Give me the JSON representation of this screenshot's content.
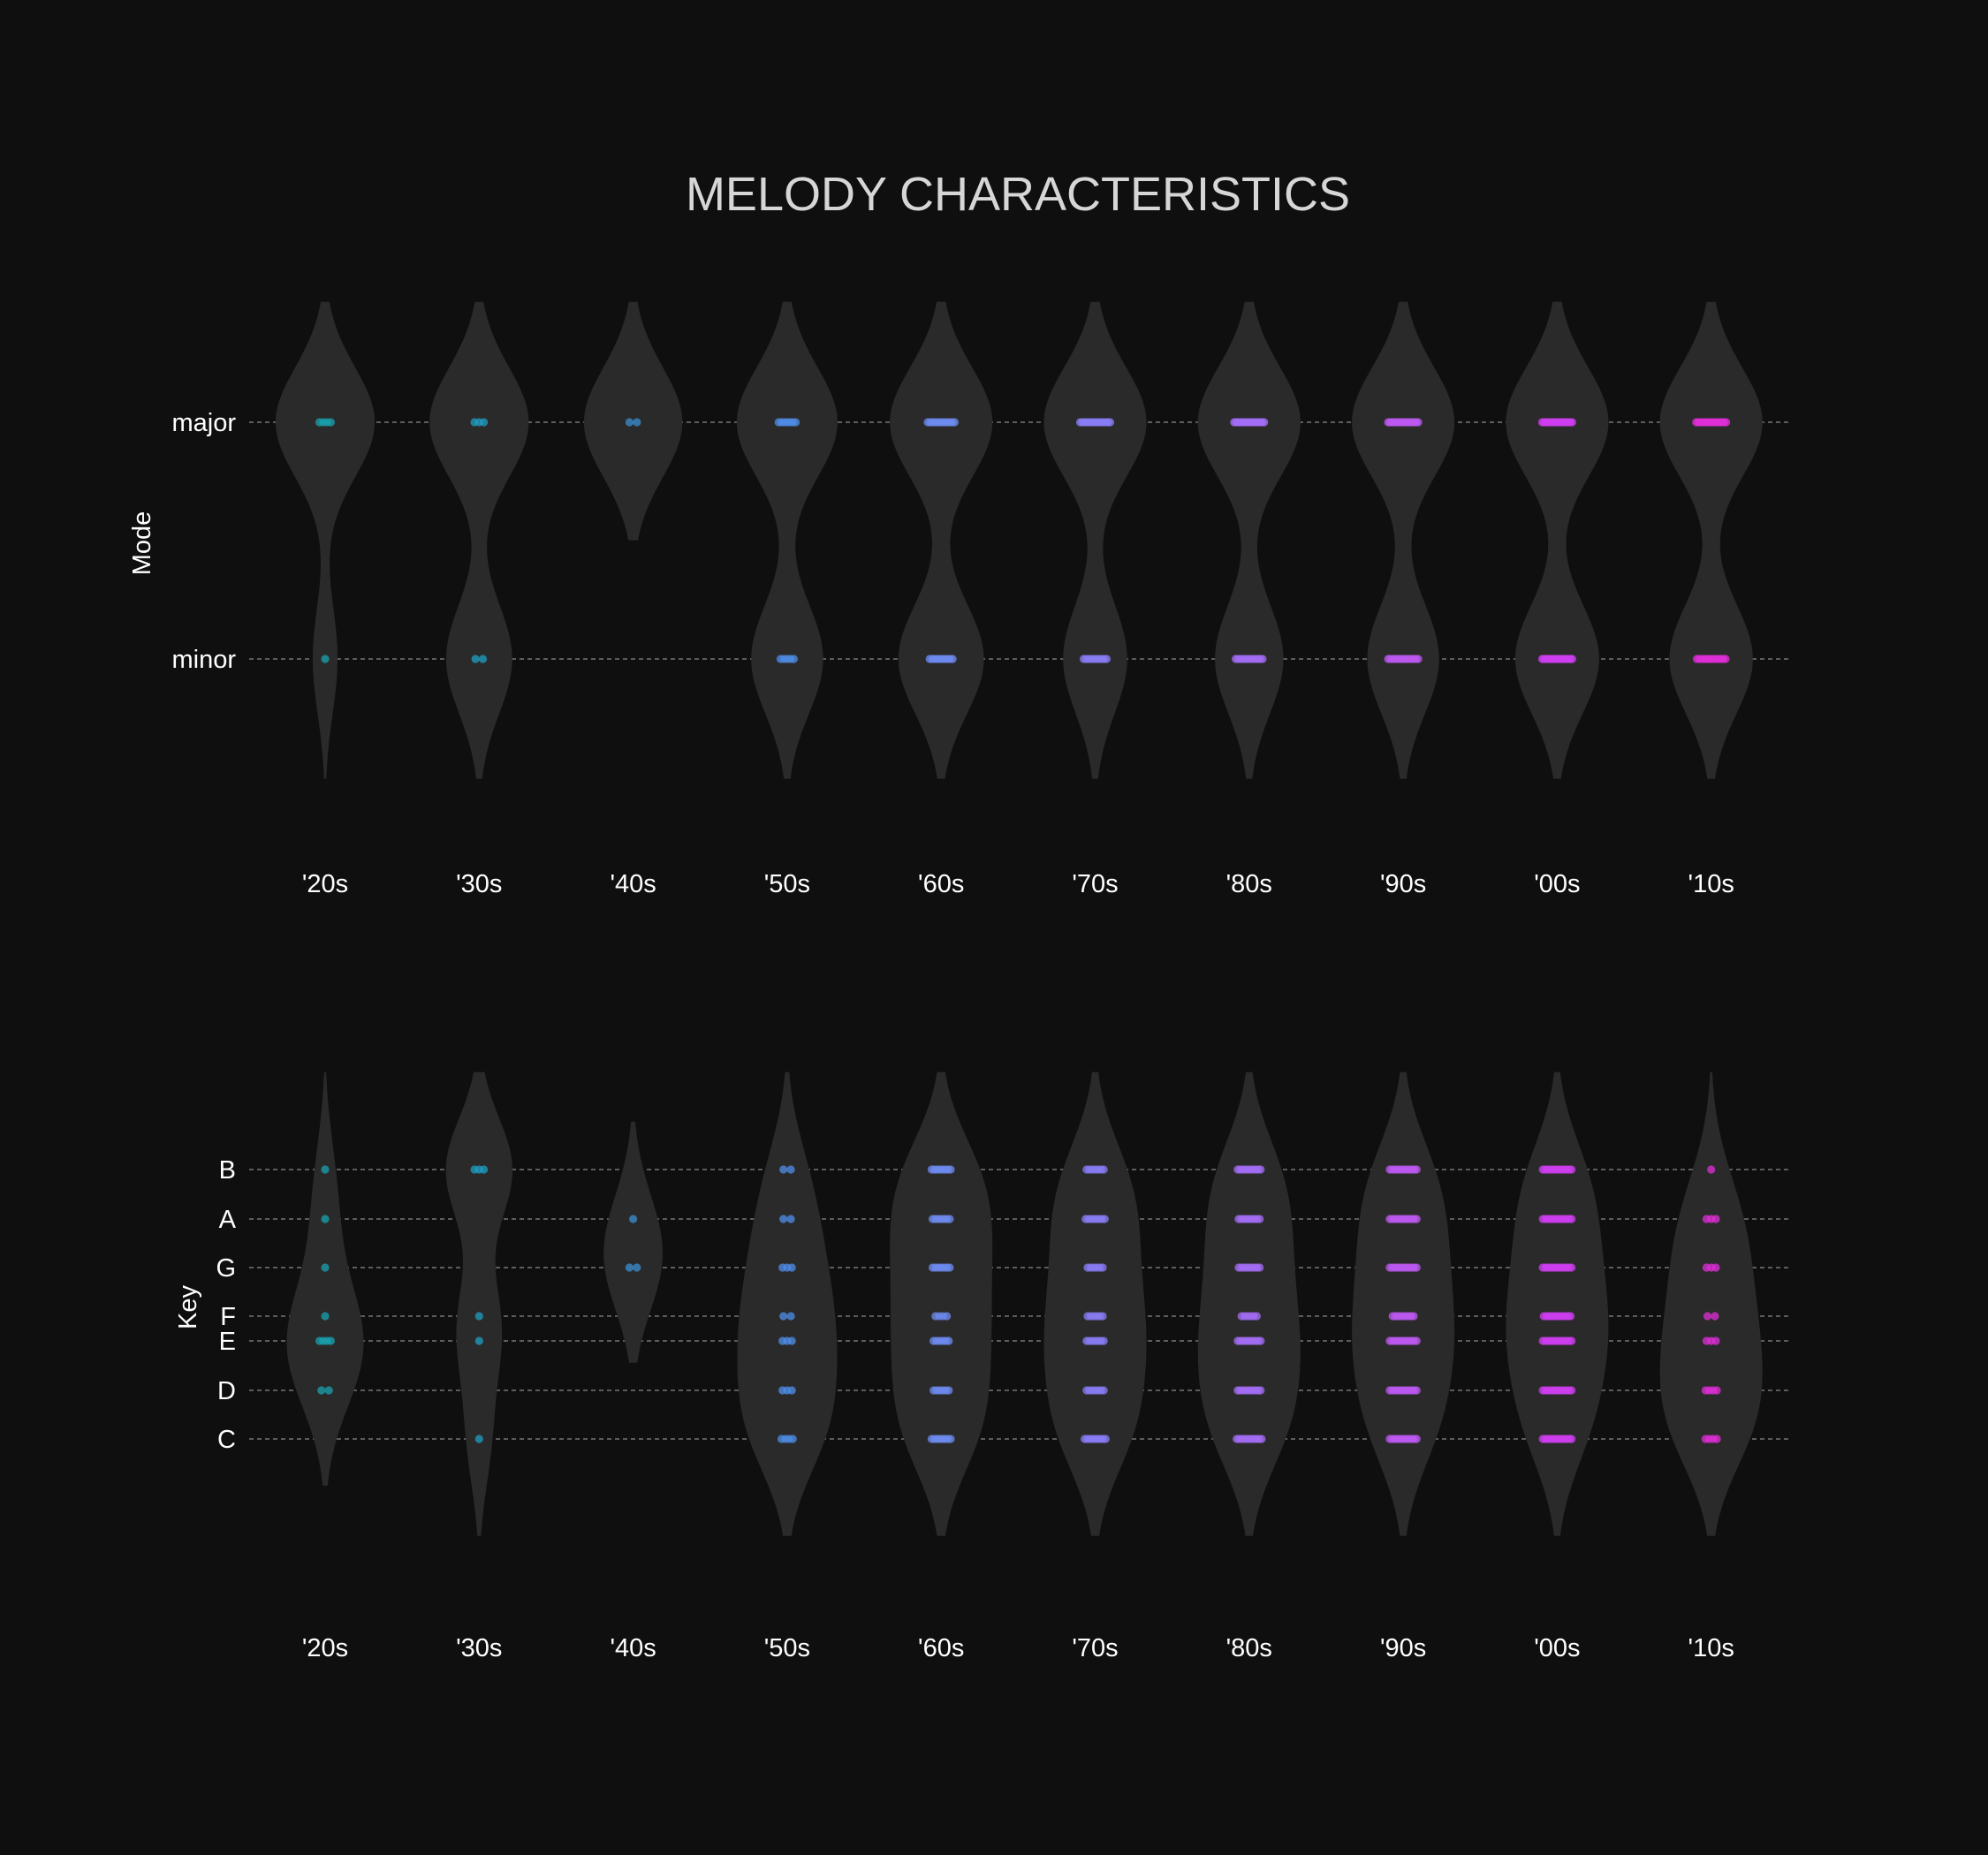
{
  "chart_data": {
    "type": "violin",
    "title": "MELODY CHARACTERISTICS",
    "categories": [
      "'20s",
      "'30s",
      "'40s",
      "'50s",
      "'60s",
      "'70s",
      "'80s",
      "'90s",
      "'00s",
      "'10s"
    ],
    "colors": [
      "#1aa3b0",
      "#1f9fc4",
      "#3b8fd0",
      "#4f8de8",
      "#6f8cf2",
      "#8a7ef5",
      "#a46ef5",
      "#bd5af2",
      "#cf3ff0",
      "#e02fd8"
    ],
    "violin_color": "#2a2a2a",
    "panels": [
      {
        "id": "mode",
        "ylabel": "Mode",
        "levels": [
          "major",
          "minor"
        ],
        "grid": true,
        "counts": [
          [
            4,
            1
          ],
          [
            3,
            2
          ],
          [
            2,
            0
          ],
          [
            7,
            5
          ],
          [
            12,
            10
          ],
          [
            16,
            10
          ],
          [
            18,
            12
          ],
          [
            20,
            14
          ],
          [
            22,
            18
          ],
          [
            16,
            13
          ]
        ]
      },
      {
        "id": "key",
        "ylabel": "Key",
        "levels": [
          "C",
          "D",
          "E",
          "F",
          "G",
          "A",
          "B"
        ],
        "grid": true,
        "counts": [
          [
            0,
            2,
            4,
            1,
            1,
            1,
            1
          ],
          [
            1,
            0,
            1,
            1,
            0,
            0,
            3
          ],
          [
            0,
            0,
            0,
            0,
            2,
            1,
            0
          ],
          [
            4,
            3,
            3,
            2,
            3,
            2,
            2
          ],
          [
            8,
            6,
            6,
            4,
            7,
            7,
            8
          ],
          [
            9,
            7,
            7,
            6,
            6,
            8,
            7
          ],
          [
            11,
            10,
            10,
            6,
            9,
            9,
            10
          ],
          [
            12,
            12,
            12,
            9,
            12,
            12,
            12
          ],
          [
            13,
            13,
            13,
            12,
            13,
            13,
            13
          ],
          [
            4,
            4,
            3,
            2,
            3,
            3,
            1
          ]
        ]
      }
    ]
  }
}
